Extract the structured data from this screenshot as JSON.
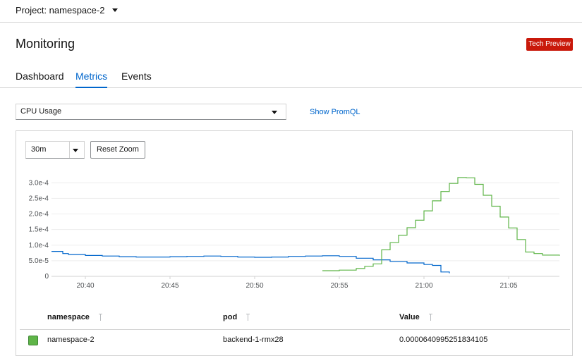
{
  "header": {
    "project_label": "Project: namespace-2",
    "title": "Monitoring",
    "badge": "Tech Preview"
  },
  "tabs": [
    {
      "label": "Dashboard",
      "active": false
    },
    {
      "label": "Metrics",
      "active": true
    },
    {
      "label": "Events",
      "active": false
    }
  ],
  "query": {
    "metric": "CPU Usage",
    "show_promql": "Show PromQL"
  },
  "controls": {
    "time_range": "30m",
    "reset_zoom": "Reset Zoom"
  },
  "chart_data": {
    "type": "line",
    "title": "",
    "xlabel": "",
    "ylabel": "",
    "xlim": [
      "20:38",
      "21:08"
    ],
    "ylim": [
      0,
      0.00033
    ],
    "y_ticks": [
      {
        "value": 0,
        "label": "0"
      },
      {
        "value": 5e-05,
        "label": "5.0e-5"
      },
      {
        "value": 0.0001,
        "label": "1.0e-4"
      },
      {
        "value": 0.00015,
        "label": "1.5e-4"
      },
      {
        "value": 0.0002,
        "label": "2.0e-4"
      },
      {
        "value": 0.00025,
        "label": "2.5e-4"
      },
      {
        "value": 0.0003,
        "label": "3.0e-4"
      }
    ],
    "x_ticks": [
      "20:40",
      "20:45",
      "20:50",
      "20:55",
      "21:00",
      "21:05"
    ],
    "grid": true,
    "series": [
      {
        "color": "#0066cc",
        "x": [
          "20:38",
          "20:38:40",
          "20:39",
          "20:40",
          "20:41",
          "20:42",
          "20:43",
          "20:44",
          "20:45",
          "20:46",
          "20:47",
          "20:48",
          "20:49",
          "20:50",
          "20:51",
          "20:52",
          "20:53",
          "20:54",
          "20:55",
          "20:56",
          "20:57",
          "20:58",
          "20:59",
          "21:00",
          "21:00:30",
          "21:01",
          "21:01:30"
        ],
        "values": [
          8e-05,
          7.3e-05,
          7e-05,
          6.7e-05,
          6.5e-05,
          6.3e-05,
          6.2e-05,
          6.2e-05,
          6.3e-05,
          6.4e-05,
          6.5e-05,
          6.4e-05,
          6.2e-05,
          6.1e-05,
          6.2e-05,
          6.4e-05,
          6.5e-05,
          6.6e-05,
          6.4e-05,
          5.8e-05,
          5.3e-05,
          4.8e-05,
          4.3e-05,
          3.8e-05,
          3.5e-05,
          1.4e-05,
          1e-05
        ]
      },
      {
        "color": "#5fb548",
        "x": [
          "20:54",
          "20:55",
          "20:56",
          "20:56:30",
          "20:57",
          "20:57:30",
          "20:58",
          "20:58:30",
          "20:59",
          "20:59:30",
          "21:00",
          "21:00:30",
          "21:01",
          "21:01:30",
          "21:02",
          "21:02:30",
          "21:03",
          "21:03:30",
          "21:04",
          "21:04:30",
          "21:05",
          "21:05:30",
          "21:06",
          "21:06:30",
          "21:07",
          "21:08"
        ],
        "values": [
          1.8e-05,
          2e-05,
          2.5e-05,
          3.2e-05,
          4e-05,
          8.5e-05,
          0.000108,
          0.000132,
          0.000156,
          0.00018,
          0.00021,
          0.000242,
          0.000272,
          0.000298,
          0.000317,
          0.000316,
          0.000295,
          0.00026,
          0.000225,
          0.00019,
          0.000155,
          0.000118,
          7.8e-05,
          7.3e-05,
          6.8e-05,
          6.6e-05
        ]
      }
    ]
  },
  "table": {
    "columns": [
      "namespace",
      "pod",
      "Value"
    ],
    "rows": [
      {
        "color": "#5fb548",
        "cells": [
          "namespace-2",
          "backend-1-rmx28",
          "0.0000640995251834105"
        ]
      }
    ]
  }
}
